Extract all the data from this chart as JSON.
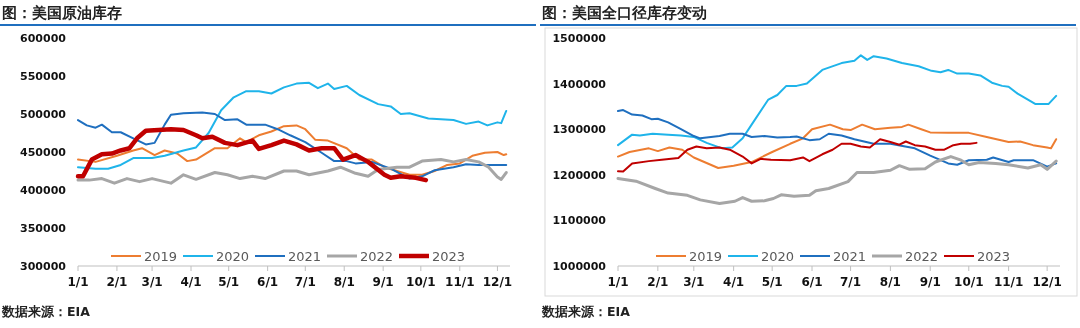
{
  "chart_data": [
    {
      "type": "line",
      "title": "图：美国原油库存",
      "annotations": [
        "数据来源：EIA"
      ],
      "legend": "bottom",
      "grid": false,
      "marker": "none",
      "line_style": "solid",
      "xlim": [
        "--01-01",
        "--12-11"
      ],
      "xticks": [
        {
          "value": "--01-01",
          "label": "1/1"
        },
        {
          "value": "--02-01",
          "label": "2/1"
        },
        {
          "value": "--03-01",
          "label": "3/1"
        },
        {
          "value": "--04-01",
          "label": "4/1"
        },
        {
          "value": "--05-01",
          "label": "5/1"
        },
        {
          "value": "--06-01",
          "label": "6/1"
        },
        {
          "value": "--07-01",
          "label": "7/1"
        },
        {
          "value": "--08-01",
          "label": "8/1"
        },
        {
          "value": "--09-01",
          "label": "9/1"
        },
        {
          "value": "--10-01",
          "label": "10/1"
        },
        {
          "value": "--11-01",
          "label": "11/1"
        },
        {
          "value": "--12-01",
          "label": "12/1"
        }
      ],
      "ylim": [
        300000,
        600000
      ],
      "yticks": [
        300000,
        350000,
        400000,
        450000,
        500000,
        550000,
        600000
      ],
      "series": [
        {
          "name": "2019",
          "color": "#ed7d31",
          "x": [
            "--01-01",
            "--01-15",
            "--02-01",
            "--02-14",
            "--02-21",
            "--03-03",
            "--03-11",
            "--03-21",
            "--03-29",
            "--04-05",
            "--04-20",
            "--04-30",
            "--05-10",
            "--05-15",
            "--05-25",
            "--06-04",
            "--06-14",
            "--06-24",
            "--07-01",
            "--07-09",
            "--07-19",
            "--08-03",
            "--08-13",
            "--08-23",
            "--09-02",
            "--09-12",
            "--09-22",
            "--10-02",
            "--10-12",
            "--10-22",
            "--11-01",
            "--11-11",
            "--11-21",
            "--12-01",
            "--12-06",
            "--12-08"
          ],
          "values": [
            440000,
            437000,
            445000,
            452000,
            455000,
            446000,
            452000,
            448000,
            438000,
            440000,
            455000,
            455000,
            468000,
            463000,
            472000,
            477000,
            484000,
            485000,
            480000,
            466000,
            465000,
            455000,
            440000,
            440000,
            430000,
            425000,
            420000,
            420000,
            425000,
            433000,
            435000,
            445000,
            449000,
            450000,
            446000,
            447000
          ]
        },
        {
          "name": "2020",
          "color": "#1fb4ea",
          "x": [
            "--01-01",
            "--01-15",
            "--01-25",
            "--02-04",
            "--02-14",
            "--03-01",
            "--03-11",
            "--03-26",
            "--04-05",
            "--04-15",
            "--04-25",
            "--05-05",
            "--05-15",
            "--05-25",
            "--06-04",
            "--06-14",
            "--06-24",
            "--07-04",
            "--07-11",
            "--07-19",
            "--07-24",
            "--08-03",
            "--08-13",
            "--08-28",
            "--09-07",
            "--09-15",
            "--09-22",
            "--10-07",
            "--10-27",
            "--11-06",
            "--11-16",
            "--11-23",
            "--12-01",
            "--12-04",
            "--12-08"
          ],
          "values": [
            430000,
            428000,
            428000,
            433000,
            442000,
            442000,
            445000,
            452000,
            456000,
            475000,
            505000,
            522000,
            530000,
            530000,
            527000,
            535000,
            540000,
            541000,
            534000,
            540000,
            533000,
            537000,
            525000,
            513000,
            510000,
            500000,
            501000,
            494000,
            492000,
            487000,
            490000,
            485000,
            489000,
            488000,
            504000
          ]
        },
        {
          "name": "2021",
          "color": "#1f6fbf",
          "x": [
            "--01-01",
            "--01-08",
            "--01-15",
            "--01-20",
            "--01-28",
            "--02-04",
            "--02-14",
            "--02-24",
            "--03-03",
            "--03-11",
            "--03-16",
            "--03-26",
            "--04-10",
            "--04-20",
            "--04-28",
            "--05-08",
            "--05-15",
            "--05-30",
            "--06-09",
            "--06-19",
            "--07-01",
            "--07-14",
            "--07-24",
            "--08-03",
            "--08-10",
            "--08-23",
            "--09-07",
            "--09-22",
            "--10-02",
            "--10-12",
            "--10-27",
            "--11-06",
            "--11-16",
            "--12-08"
          ],
          "values": [
            492000,
            485000,
            482000,
            486000,
            476000,
            476000,
            468000,
            460000,
            462000,
            486000,
            499000,
            501000,
            502000,
            500000,
            492000,
            493000,
            486000,
            486000,
            480000,
            472000,
            463000,
            449000,
            438000,
            438000,
            435000,
            437000,
            428000,
            415000,
            418000,
            426000,
            430000,
            434000,
            433000,
            433000
          ]
        },
        {
          "name": "2022",
          "color": "#a6a6a6",
          "x": [
            "--01-01",
            "--01-10",
            "--01-20",
            "--01-30",
            "--02-09",
            "--02-19",
            "--03-01",
            "--03-16",
            "--03-26",
            "--04-05",
            "--04-20",
            "--04-30",
            "--05-10",
            "--05-20",
            "--05-30",
            "--06-14",
            "--06-24",
            "--07-04",
            "--07-19",
            "--07-29",
            "--08-10",
            "--08-20",
            "--08-28",
            "--09-12",
            "--09-22",
            "--10-02",
            "--10-17",
            "--10-27",
            "--11-06",
            "--11-16",
            "--11-24",
            "--12-01",
            "--12-04",
            "--12-08"
          ],
          "values": [
            413000,
            413000,
            415000,
            409000,
            415000,
            411000,
            415000,
            409000,
            420000,
            414000,
            423000,
            420000,
            415000,
            418000,
            415000,
            425000,
            425000,
            420000,
            425000,
            430000,
            422000,
            418000,
            427000,
            430000,
            430000,
            438000,
            440000,
            437000,
            440000,
            437000,
            430000,
            417000,
            414000,
            423000
          ]
        },
        {
          "name": "2023",
          "color": "#c00000",
          "x": [
            "--01-01",
            "--01-05",
            "--01-12",
            "--01-20",
            "--01-28",
            "--02-04",
            "--02-11",
            "--02-17",
            "--02-24",
            "--03-06",
            "--03-16",
            "--03-26",
            "--04-05",
            "--04-10",
            "--04-18",
            "--04-28",
            "--05-08",
            "--05-20",
            "--05-25",
            "--06-04",
            "--06-14",
            "--06-24",
            "--07-04",
            "--07-14",
            "--07-24",
            "--07-31",
            "--08-10",
            "--08-20",
            "--09-02",
            "--09-07",
            "--09-15",
            "--09-27",
            "--10-05"
          ],
          "values": [
            418000,
            418000,
            440000,
            447000,
            448000,
            452000,
            455000,
            468000,
            478000,
            479000,
            480000,
            479000,
            472000,
            468000,
            470000,
            462000,
            459000,
            465000,
            454000,
            459000,
            465000,
            460000,
            452000,
            455000,
            455000,
            440000,
            446000,
            437000,
            420000,
            416000,
            418000,
            416000,
            413000
          ]
        }
      ]
    },
    {
      "type": "line",
      "title": "图：美国全口径库存变动",
      "annotations": [
        "数据来源：EIA"
      ],
      "legend": "bottom",
      "grid": false,
      "marker": "none",
      "line_style": "solid",
      "xlim": [
        "--01-01",
        "--12-11"
      ],
      "xticks": [
        {
          "value": "--01-01",
          "label": "1/1"
        },
        {
          "value": "--02-01",
          "label": "2/1"
        },
        {
          "value": "--03-01",
          "label": "3/1"
        },
        {
          "value": "--04-01",
          "label": "4/1"
        },
        {
          "value": "--05-01",
          "label": "5/1"
        },
        {
          "value": "--06-01",
          "label": "6/1"
        },
        {
          "value": "--07-01",
          "label": "7/1"
        },
        {
          "value": "--08-01",
          "label": "8/1"
        },
        {
          "value": "--09-01",
          "label": "9/1"
        },
        {
          "value": "--10-01",
          "label": "10/1"
        },
        {
          "value": "--11-01",
          "label": "11/1"
        },
        {
          "value": "--12-01",
          "label": "12/1"
        }
      ],
      "ylim": [
        1000000,
        1500000
      ],
      "yticks": [
        1000000,
        1100000,
        1200000,
        1300000,
        1400000,
        1500000
      ],
      "series": [
        {
          "name": "2019",
          "color": "#ed7d31",
          "x": [
            "--01-01",
            "--01-10",
            "--01-25",
            "--02-01",
            "--02-10",
            "--02-20",
            "--03-01",
            "--03-20",
            "--04-01",
            "--04-15",
            "--05-01",
            "--05-15",
            "--05-25",
            "--06-01",
            "--06-15",
            "--06-25",
            "--07-01",
            "--07-10",
            "--07-20",
            "--08-01",
            "--08-10",
            "--08-15",
            "--08-25",
            "--09-01",
            "--09-15",
            "--10-01",
            "--10-15",
            "--11-01",
            "--11-10",
            "--11-20",
            "--12-01",
            "--12-04",
            "--12-08"
          ],
          "values": [
            1240000,
            1250000,
            1258000,
            1252000,
            1260000,
            1255000,
            1238000,
            1215000,
            1220000,
            1228000,
            1250000,
            1268000,
            1280000,
            1300000,
            1310000,
            1300000,
            1298000,
            1310000,
            1300000,
            1303000,
            1305000,
            1310000,
            1300000,
            1293000,
            1292000,
            1292000,
            1283000,
            1272000,
            1273000,
            1265000,
            1260000,
            1258000,
            1278000
          ]
        },
        {
          "name": "2020",
          "color": "#1fb4ea",
          "x": [
            "--01-01",
            "--01-12",
            "--01-18",
            "--01-28",
            "--02-09",
            "--02-19",
            "--03-01",
            "--03-11",
            "--03-23",
            "--03-31",
            "--04-08",
            "--04-15",
            "--04-28",
            "--05-05",
            "--05-12",
            "--05-20",
            "--05-28",
            "--06-09",
            "--06-24",
            "--07-04",
            "--07-09",
            "--07-14",
            "--07-19",
            "--07-29",
            "--08-10",
            "--08-23",
            "--09-02",
            "--09-09",
            "--09-15",
            "--09-22",
            "--10-01",
            "--10-10",
            "--10-19",
            "--10-27",
            "--11-01",
            "--11-08",
            "--11-16",
            "--11-22",
            "--12-02",
            "--12-08"
          ],
          "values": [
            1265000,
            1288000,
            1286000,
            1290000,
            1288000,
            1286000,
            1283000,
            1270000,
            1258000,
            1260000,
            1280000,
            1310000,
            1365000,
            1375000,
            1395000,
            1395000,
            1400000,
            1430000,
            1445000,
            1450000,
            1462000,
            1452000,
            1460000,
            1455000,
            1445000,
            1438000,
            1428000,
            1425000,
            1430000,
            1422000,
            1422000,
            1418000,
            1402000,
            1395000,
            1393000,
            1378000,
            1365000,
            1355000,
            1355000,
            1373000
          ]
        },
        {
          "name": "2021",
          "color": "#1f6fbf",
          "x": [
            "--01-01",
            "--01-05",
            "--01-12",
            "--01-20",
            "--01-27",
            "--02-01",
            "--02-09",
            "--02-19",
            "--03-01",
            "--03-06",
            "--03-21",
            "--03-29",
            "--04-08",
            "--04-15",
            "--04-25",
            "--05-05",
            "--05-15",
            "--05-20",
            "--05-30",
            "--06-07",
            "--06-14",
            "--06-24",
            "--07-04",
            "--07-19",
            "--08-01",
            "--08-20",
            "--09-01",
            "--09-15",
            "--09-22",
            "--10-01",
            "--10-15",
            "--10-20",
            "--11-01",
            "--11-05",
            "--11-20",
            "--12-01",
            "--12-08"
          ],
          "values": [
            1340000,
            1342000,
            1332000,
            1330000,
            1322000,
            1323000,
            1315000,
            1300000,
            1285000,
            1280000,
            1285000,
            1290000,
            1290000,
            1283000,
            1285000,
            1282000,
            1283000,
            1284000,
            1276000,
            1278000,
            1290000,
            1286000,
            1278000,
            1268000,
            1268000,
            1258000,
            1242000,
            1225000,
            1222000,
            1232000,
            1233000,
            1238000,
            1228000,
            1232000,
            1232000,
            1218000,
            1225000
          ]
        },
        {
          "name": "2022",
          "color": "#a6a6a6",
          "x": [
            "--01-01",
            "--01-15",
            "--01-30",
            "--02-09",
            "--02-24",
            "--03-06",
            "--03-21",
            "--04-02",
            "--04-08",
            "--04-15",
            "--04-25",
            "--05-02",
            "--05-08",
            "--05-18",
            "--05-30",
            "--06-04",
            "--06-14",
            "--06-29",
            "--07-06",
            "--07-19",
            "--08-01",
            "--08-08",
            "--08-16",
            "--08-28",
            "--09-05",
            "--09-17",
            "--09-25",
            "--10-01",
            "--10-09",
            "--10-22",
            "--11-01",
            "--11-16",
            "--11-26",
            "--12-01",
            "--12-08"
          ],
          "values": [
            1192000,
            1186000,
            1170000,
            1160000,
            1155000,
            1145000,
            1137000,
            1142000,
            1150000,
            1142000,
            1143000,
            1148000,
            1156000,
            1153000,
            1155000,
            1165000,
            1170000,
            1185000,
            1205000,
            1205000,
            1210000,
            1220000,
            1212000,
            1213000,
            1228000,
            1240000,
            1232000,
            1222000,
            1227000,
            1225000,
            1222000,
            1215000,
            1222000,
            1212000,
            1230000
          ]
        },
        {
          "name": "2023",
          "color": "#c00000",
          "x": [
            "--01-01",
            "--01-05",
            "--01-12",
            "--01-25",
            "--02-04",
            "--02-17",
            "--02-24",
            "--03-03",
            "--03-11",
            "--03-21",
            "--03-29",
            "--04-08",
            "--04-15",
            "--04-22",
            "--04-30",
            "--05-15",
            "--05-25",
            "--05-30",
            "--06-09",
            "--06-17",
            "--06-24",
            "--07-01",
            "--07-09",
            "--07-16",
            "--07-24",
            "--08-01",
            "--08-08",
            "--08-13",
            "--08-20",
            "--08-28",
            "--09-05",
            "--09-12",
            "--09-19",
            "--09-25",
            "--10-02",
            "--10-07"
          ],
          "values": [
            1208000,
            1207000,
            1225000,
            1230000,
            1233000,
            1237000,
            1255000,
            1262000,
            1258000,
            1260000,
            1255000,
            1240000,
            1225000,
            1235000,
            1233000,
            1232000,
            1238000,
            1230000,
            1245000,
            1255000,
            1268000,
            1268000,
            1262000,
            1260000,
            1278000,
            1272000,
            1266000,
            1273000,
            1265000,
            1262000,
            1255000,
            1255000,
            1265000,
            1268000,
            1268000,
            1270000
          ]
        }
      ]
    }
  ]
}
